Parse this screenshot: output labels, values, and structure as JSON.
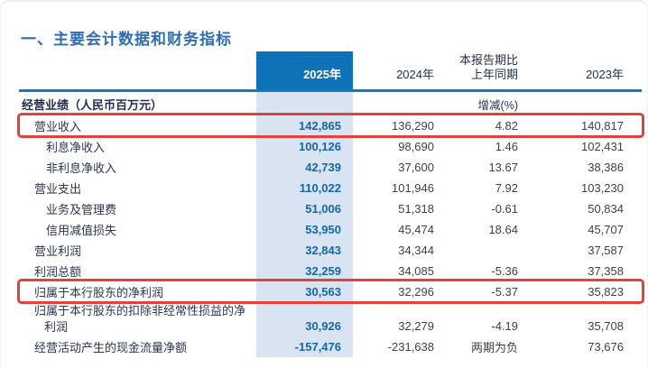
{
  "page": {
    "title": "一、主要会计数据和财务指标"
  },
  "table": {
    "header": {
      "col_2025": "2025年",
      "col_2024": "2024年",
      "col_change_line1": "本报告期比",
      "col_change_line2": "上年同期",
      "col_2023": "2023年",
      "change_unit": "增减(%)"
    },
    "section_label": "经营业绩（人民币百万元）",
    "rows": [
      {
        "label": "营业收入",
        "indent": 1,
        "highlight": true,
        "wrap": false,
        "v2025": "142,865",
        "v2024": "136,290",
        "change": "4.82",
        "v2023": "140,817"
      },
      {
        "label": "利息净收入",
        "indent": 2,
        "highlight": false,
        "wrap": false,
        "v2025": "100,126",
        "v2024": "98,690",
        "change": "1.46",
        "v2023": "102,431"
      },
      {
        "label": "非利息净收入",
        "indent": 2,
        "highlight": false,
        "wrap": false,
        "v2025": "42,739",
        "v2024": "37,600",
        "change": "13.67",
        "v2023": "38,386"
      },
      {
        "label": "营业支出",
        "indent": 1,
        "highlight": false,
        "wrap": false,
        "v2025": "110,022",
        "v2024": "101,946",
        "change": "7.92",
        "v2023": "103,230"
      },
      {
        "label": "业务及管理费",
        "indent": 2,
        "highlight": false,
        "wrap": false,
        "v2025": "51,006",
        "v2024": "51,318",
        "change": "-0.61",
        "v2023": "50,834"
      },
      {
        "label": "信用减值损失",
        "indent": 2,
        "highlight": false,
        "wrap": false,
        "v2025": "53,950",
        "v2024": "45,474",
        "change": "18.64",
        "v2023": "45,707"
      },
      {
        "label": "营业利润",
        "indent": 1,
        "highlight": false,
        "wrap": false,
        "v2025": "32,843",
        "v2024": "34,344",
        "change": "",
        "v2023": "37,587"
      },
      {
        "label": "利润总额",
        "indent": 1,
        "highlight": false,
        "wrap": false,
        "v2025": "32,259",
        "v2024": "34,085",
        "change": "-5.36",
        "v2023": "37,358"
      },
      {
        "label": "归属于本行股东的净利润",
        "indent": 1,
        "highlight": true,
        "wrap": false,
        "v2025": "30,563",
        "v2024": "32,296",
        "change": "-5.37",
        "v2023": "35,823"
      },
      {
        "label": "归属于本行股东的扣除非经常性损益的净利润",
        "indent": 1,
        "highlight": false,
        "wrap": true,
        "v2025": "30,926",
        "v2024": "32,279",
        "change": "-4.19",
        "v2023": "35,708"
      },
      {
        "label": "经营活动产生的现金流量净额",
        "indent": 1,
        "highlight": false,
        "wrap": false,
        "v2025": "-157,476",
        "v2024": "-231,638",
        "change": "两期为负",
        "v2023": "73,676"
      }
    ]
  },
  "colors": {
    "title_blue": "#2e6db5",
    "header_blue": "#0d72b8",
    "rule_blue": "#1778ba",
    "band_blue": "#d9e4f2",
    "value_blue": "#1366ae",
    "highlight_red": "#e2423b",
    "label_navy": "#2a3550",
    "value_gray": "#3f3f46"
  }
}
